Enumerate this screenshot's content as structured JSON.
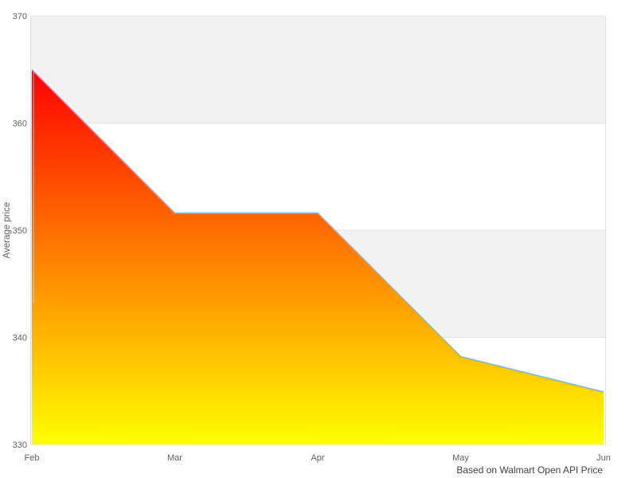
{
  "chart_data": {
    "type": "area",
    "title": "",
    "xlabel": "",
    "ylabel": "Average price",
    "caption": "Based on Walmart Open API Price",
    "categories": [
      "Feb",
      "Mar",
      "Apr",
      "May",
      "Jun"
    ],
    "values": [
      365,
      351.6,
      351.6,
      338.2,
      334.9
    ],
    "series_name": "Average price",
    "ylim": [
      330,
      370
    ],
    "yticks": [
      330,
      340,
      350,
      360,
      370
    ],
    "band_pairs": [
      [
        360,
        370
      ],
      [
        340,
        350
      ]
    ],
    "legend": "none",
    "grid": "alternating-horizontal-bands",
    "colors": {
      "line": "#7cb5ec",
      "fill_top": "#ff0000",
      "fill_bottom": "#ffff00",
      "band": "#f2f2f2",
      "gridline": "#e4e4e4",
      "plot_border": "#e0e0e0",
      "axis_label": "#606060",
      "caption_text": "#404040",
      "background": "#ffffff"
    }
  }
}
